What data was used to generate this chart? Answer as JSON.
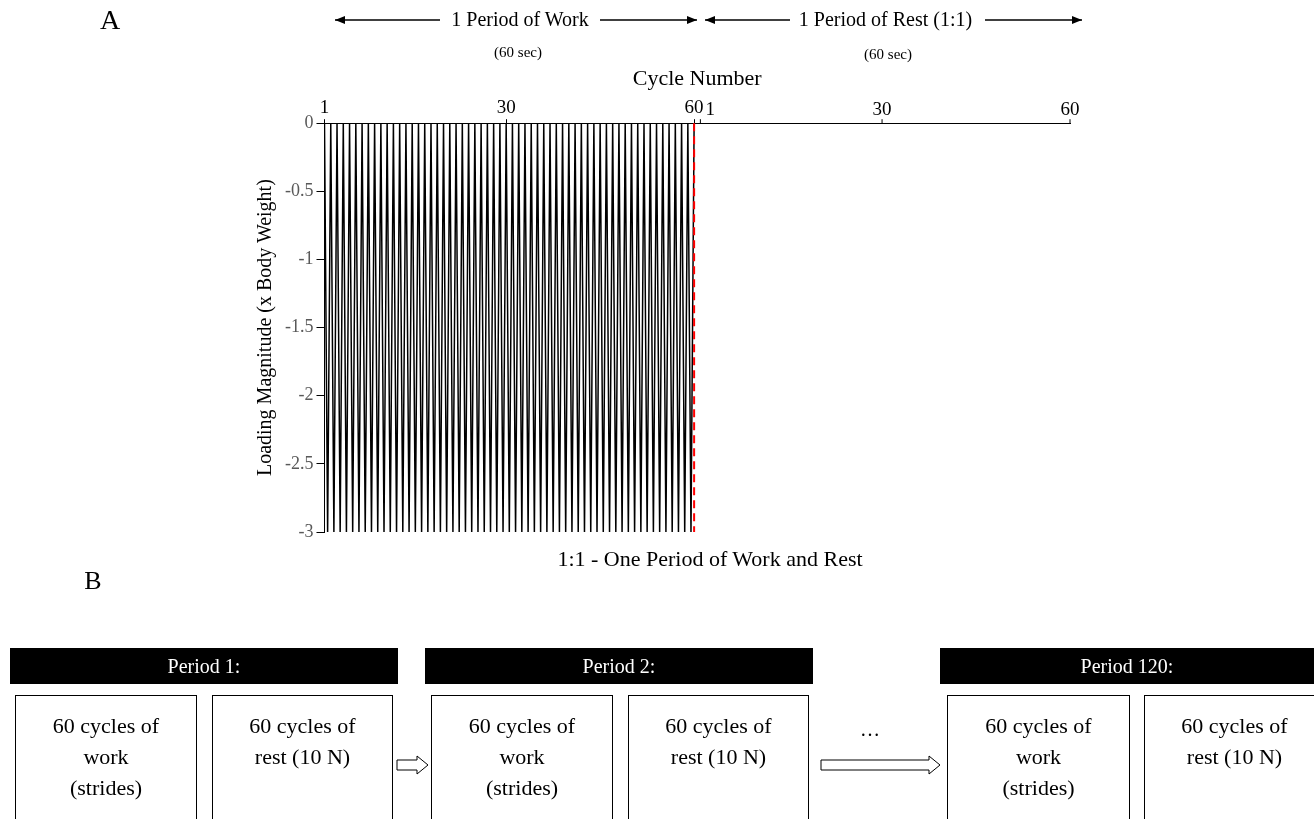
{
  "chart_data": {
    "type": "line",
    "xlabel": "Cycle Number",
    "ylabel": "Loading Magnitude (x Body Weight)",
    "x": [
      1,
      1.5,
      2,
      2.5,
      3,
      3.5,
      4,
      4.5,
      5,
      5.5,
      6,
      6.5,
      7,
      7.5,
      8,
      8.5,
      9,
      9.5,
      10,
      10.5,
      11,
      11.5,
      12,
      12.5,
      13,
      13.5,
      14,
      14.5,
      15,
      15.5,
      16,
      16.5,
      17,
      17.5,
      18,
      18.5,
      19,
      19.5,
      20,
      20.5,
      21,
      21.5,
      22,
      22.5,
      23,
      23.5,
      24,
      24.5,
      25,
      25.5,
      26,
      26.5,
      27,
      27.5,
      28,
      28.5,
      29,
      29.5,
      30,
      30.5,
      31,
      31.5,
      32,
      32.5,
      33,
      33.5,
      34,
      34.5,
      35,
      35.5,
      36,
      36.5,
      37,
      37.5,
      38,
      38.5,
      39,
      39.5,
      40,
      40.5,
      41,
      41.5,
      42,
      42.5,
      43,
      43.5,
      44,
      44.5,
      45,
      45.5,
      46,
      46.5,
      47,
      47.5,
      48,
      48.5,
      49,
      49.5,
      50,
      50.5,
      51,
      51.5,
      52,
      52.5,
      53,
      53.5,
      54,
      54.5,
      55,
      55.5,
      56,
      56.5,
      57,
      57.5,
      58,
      58.5,
      59,
      59.5,
      60,
      120
    ],
    "values": [
      0,
      -3,
      0,
      -3,
      0,
      -3,
      0,
      -3,
      0,
      -3,
      0,
      -3,
      0,
      -3,
      0,
      -3,
      0,
      -3,
      0,
      -3,
      0,
      -3,
      0,
      -3,
      0,
      -3,
      0,
      -3,
      0,
      -3,
      0,
      -3,
      0,
      -3,
      0,
      -3,
      0,
      -3,
      0,
      -3,
      0,
      -3,
      0,
      -3,
      0,
      -3,
      0,
      -3,
      0,
      -3,
      0,
      -3,
      0,
      -3,
      0,
      -3,
      0,
      -3,
      0,
      -3,
      0,
      -3,
      0,
      -3,
      0,
      -3,
      0,
      -3,
      0,
      -3,
      0,
      -3,
      0,
      -3,
      0,
      -3,
      0,
      -3,
      0,
      -3,
      0,
      -3,
      0,
      -3,
      0,
      -3,
      0,
      -3,
      0,
      -3,
      0,
      -3,
      0,
      -3,
      0,
      -3,
      0,
      -3,
      0,
      -3,
      0,
      -3,
      0,
      -3,
      0,
      -3,
      0,
      -3,
      0,
      -3,
      0,
      -3,
      0,
      -3,
      0,
      -3,
      0,
      -3,
      0,
      0
    ],
    "color": "#000000",
    "marker": "none",
    "grid": false,
    "legend": false,
    "xlim": [
      1,
      120
    ],
    "xticks": [
      1,
      30,
      60
    ],
    "x2lim": [
      -59,
      60
    ],
    "x2ticks": [
      1,
      30,
      60
    ],
    "ylim": [
      -3,
      0
    ],
    "yticks": [
      0,
      -0.5,
      -1,
      -1.5,
      -2,
      -2.5,
      -3
    ],
    "ref_lines": [
      {
        "axis": "x",
        "value": 60,
        "color": "#ff0000",
        "line_style": "dashed"
      }
    ],
    "annotations": [
      "A",
      "1 Period of Work",
      "(60 sec)",
      "1 Period of Rest (1:1)",
      "(60 sec)",
      "1:1 - One Period of Work and Rest",
      "B",
      "Period 1:",
      "60 cycles of work (strides)",
      "60 cycles of rest (10 N)",
      "Period 2:",
      "60 cycles of work (strides)",
      "60 cycles of rest (10 N)",
      "…",
      "Period 120:",
      "60 cycles of work (strides)",
      "60 cycles of rest (10 N)"
    ]
  }
}
